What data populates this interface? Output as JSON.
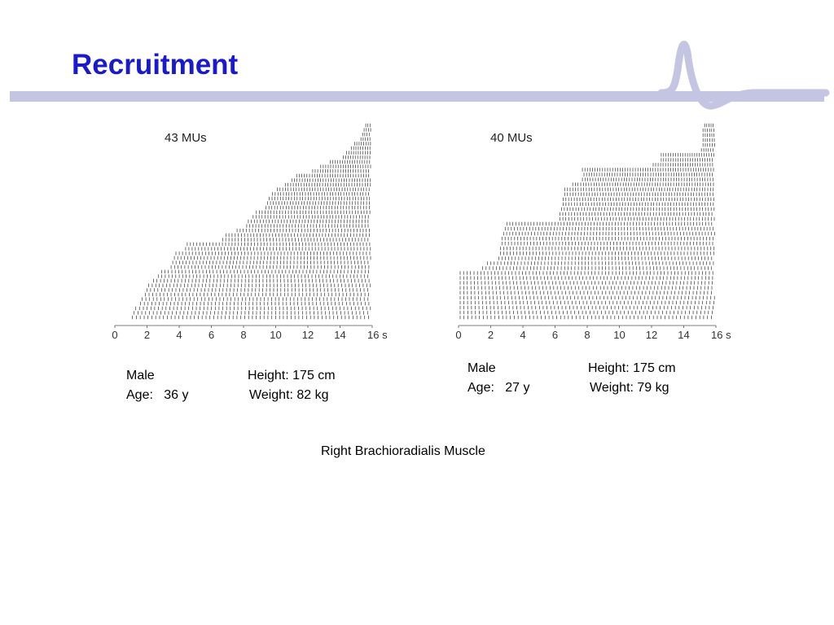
{
  "slide": {
    "title": "Recruitment",
    "caption": "Right Brachioradialis Muscle",
    "accent_color": "#1a1acc",
    "rule_color": "#c3c5e3"
  },
  "panels": [
    {
      "mu_label": "43 MUs",
      "sex": "Male",
      "age": "Age:   36 y",
      "height": "Height: 175 cm",
      "weight": "Weight: 82 kg"
    },
    {
      "mu_label": "40 MUs",
      "sex": "Male",
      "age": "Age:   27 y",
      "height": "Height: 175 cm",
      "weight": "Weight: 79 kg"
    }
  ],
  "chart_data": [
    {
      "type": "raster",
      "title": "43 MUs",
      "x_ticks": [
        "0",
        "2",
        "4",
        "6",
        "8",
        "10",
        "12",
        "14",
        "16 s"
      ],
      "xlim": [
        0,
        16
      ],
      "unit": "s",
      "motor_unit_count": 43,
      "recruitment_times_s": [
        15.6,
        15.5,
        15.4,
        15.3,
        14.9,
        14.7,
        14.4,
        14.2,
        13.4,
        12.8,
        12.3,
        11.3,
        11.0,
        10.6,
        10.1,
        9.8,
        9.6,
        9.5,
        9.4,
        8.8,
        8.6,
        8.3,
        8.2,
        7.6,
        6.9,
        6.7,
        4.5,
        4.4,
        3.8,
        3.7,
        3.6,
        3.5,
        2.9,
        2.7,
        2.4,
        2.1,
        2.0,
        1.9,
        1.7,
        1.6,
        1.3,
        1.2,
        1.1
      ]
    },
    {
      "type": "raster",
      "title": "40 MUs",
      "x_ticks": [
        "0",
        "2",
        "4",
        "6",
        "8",
        "10",
        "12",
        "14",
        "16 s"
      ],
      "xlim": [
        0,
        16
      ],
      "unit": "s",
      "motor_unit_count": 40,
      "recruitment_times_s": [
        15.3,
        15.2,
        15.2,
        15.2,
        15.2,
        15.1,
        12.6,
        12.6,
        12.1,
        7.7,
        7.8,
        7.7,
        7.1,
        6.6,
        6.6,
        6.5,
        6.5,
        6.4,
        6.3,
        6.3,
        3.0,
        2.9,
        2.8,
        2.7,
        2.7,
        2.6,
        2.6,
        2.5,
        1.8,
        1.5,
        0.1,
        0.1,
        0.1,
        0.1,
        0.1,
        0.1,
        0.1,
        0.1,
        0.1,
        0.1
      ]
    }
  ]
}
